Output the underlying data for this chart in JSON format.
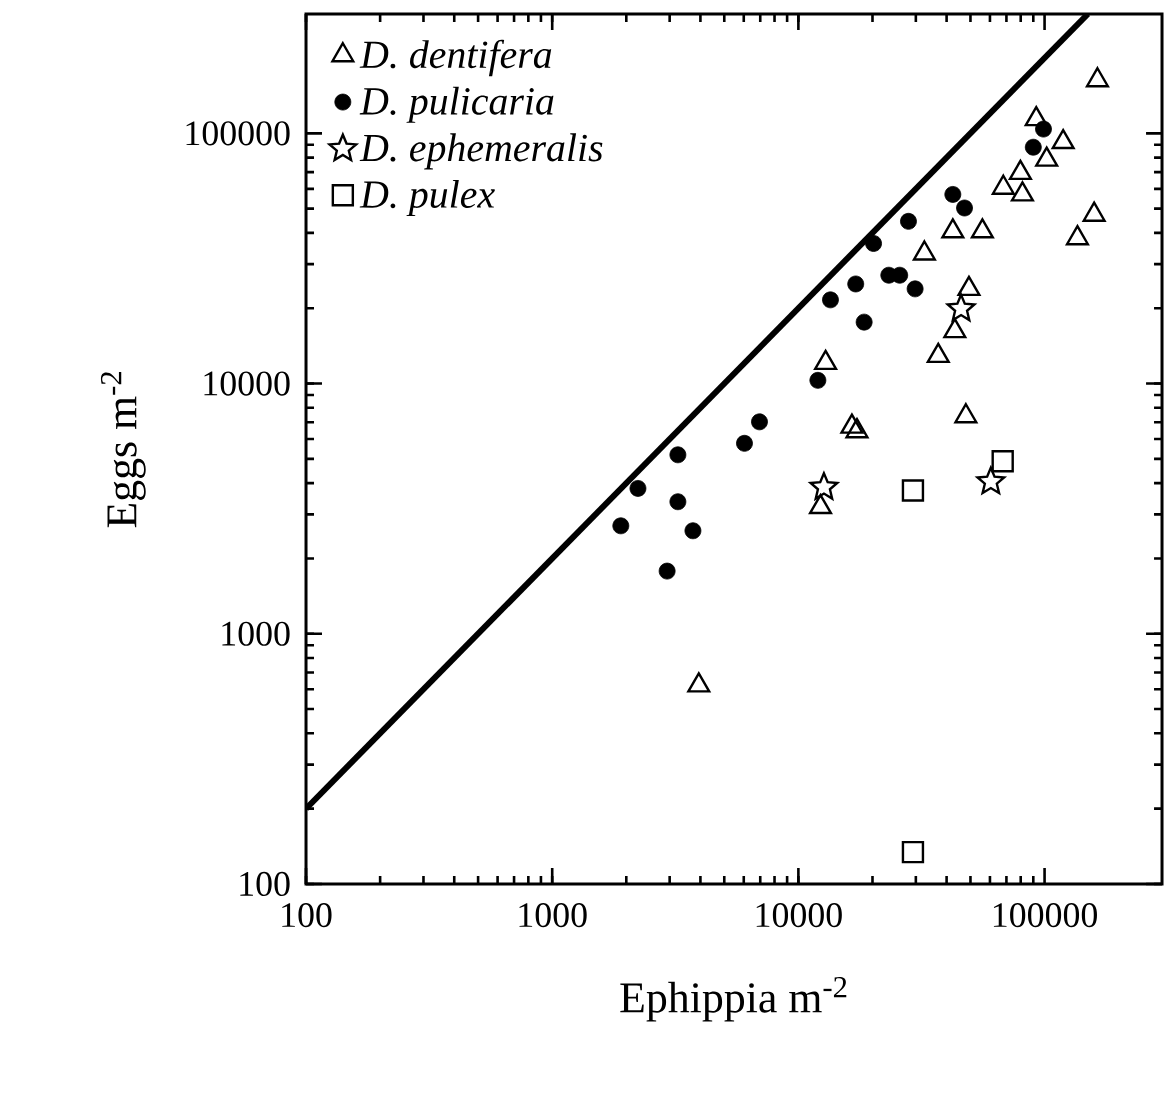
{
  "chart_data": {
    "type": "scatter",
    "xlabel": "Ephippia m$^{-2}$",
    "ylabel": "Eggs m$^{-2}$",
    "log": "xy",
    "xlim": [
      100,
      300000
    ],
    "ylim": [
      100,
      300000
    ],
    "xticks": [
      100,
      1000,
      10000,
      100000
    ],
    "yticks": [
      100,
      1000,
      10000,
      100000
    ],
    "grid": false,
    "legend": "top left",
    "series": [
      {
        "name": "D. dentifera",
        "color": "#000000",
        "marker": "triangle",
        "x": [
          164000,
          92500,
          119000,
          102000,
          79800,
          68000,
          81300,
          159000,
          136000,
          42400,
          55900,
          32500,
          49300,
          43200,
          37000,
          12900,
          16500,
          17300,
          47900,
          12300,
          3940
        ],
        "values": [
          163000,
          114000,
          92300,
          78500,
          69500,
          60600,
          57000,
          47300,
          38100,
          40600,
          40600,
          33100,
          23900,
          16200,
          12900,
          12100,
          6730,
          6450,
          7400,
          3210,
          622
        ]
      },
      {
        "name": "D. pulicaria",
        "color": "#000000",
        "marker": "circle",
        "x": [
          99000,
          90000,
          42400,
          47300,
          28000,
          20200,
          17100,
          13500,
          23300,
          25800,
          29800,
          18500,
          12000,
          6950,
          6040,
          3240,
          2230,
          3240,
          1900,
          3730,
          2930
        ],
        "values": [
          104000,
          88000,
          57000,
          50300,
          44500,
          36300,
          25000,
          21600,
          27100,
          27100,
          23900,
          17600,
          10300,
          7030,
          5770,
          5190,
          3810,
          3370,
          2700,
          2580,
          1780
        ]
      },
      {
        "name": "D. ephemeralis",
        "color": "#000000",
        "marker": "star",
        "x": [
          12700,
          45800,
          60500
        ],
        "values": [
          3850,
          19900,
          4050
        ]
      },
      {
        "name": "D. pulex",
        "color": "#000000",
        "marker": "square",
        "x": [
          29200,
          67600,
          29200
        ],
        "values": [
          3740,
          4890,
          134
        ]
      },
      {
        "type": "line",
        "color": "#000000",
        "marker": "none",
        "x": [
          100,
          150000
        ],
        "values": [
          200,
          300000
        ]
      }
    ]
  }
}
